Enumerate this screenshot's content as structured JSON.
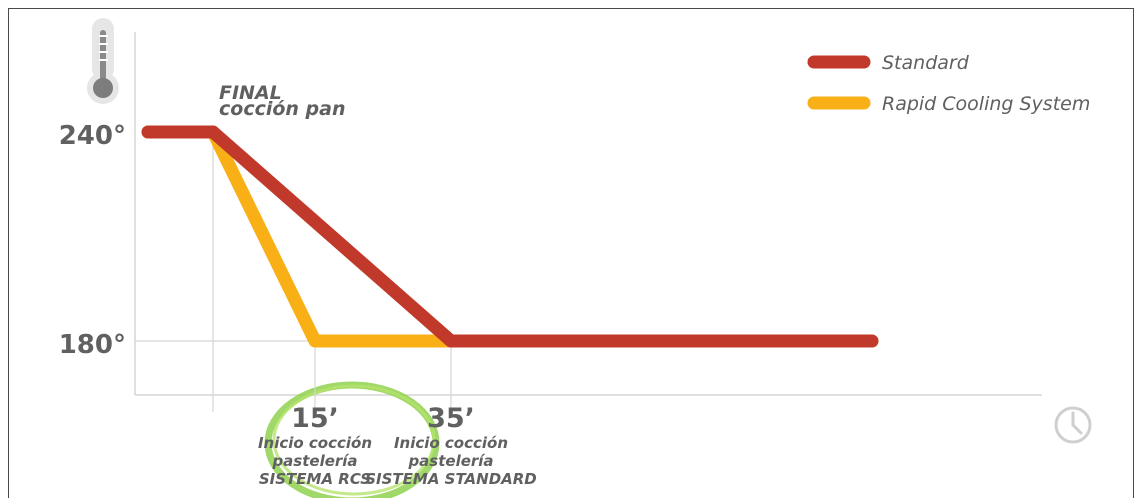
{
  "chart_data": {
    "type": "line",
    "title": "",
    "xlabel": "",
    "ylabel": "",
    "yticks": [
      {
        "value": 240,
        "label": "240°"
      },
      {
        "value": 180,
        "label": "180°"
      }
    ],
    "xticks": [
      {
        "value": 15,
        "label": "15’",
        "lines": [
          "Inicio cocción",
          "pastelería",
          "SISTEMA RCS"
        ],
        "highlight": true
      },
      {
        "value": 35,
        "label": "35’",
        "lines": [
          "Inicio cocción",
          "pastelería",
          "SISTEMA STANDARD"
        ],
        "highlight": false
      }
    ],
    "annotations": [
      {
        "x": 0,
        "lines": [
          "FINAL",
          "cocción pan"
        ]
      }
    ],
    "series": [
      {
        "name": "Standard",
        "color": "#c0392b",
        "x": [
          -8,
          0,
          35,
          70
        ],
        "y": [
          240,
          240,
          180,
          180
        ]
      },
      {
        "name": "Rapid Cooling System",
        "color": "#f9b016",
        "x": [
          -8,
          0,
          15,
          70
        ],
        "y": [
          240,
          240,
          180,
          180
        ]
      }
    ],
    "legend_position": "top-right",
    "grid": false,
    "axis_icons": {
      "y": "thermometer-icon",
      "x": "clock-icon"
    }
  }
}
